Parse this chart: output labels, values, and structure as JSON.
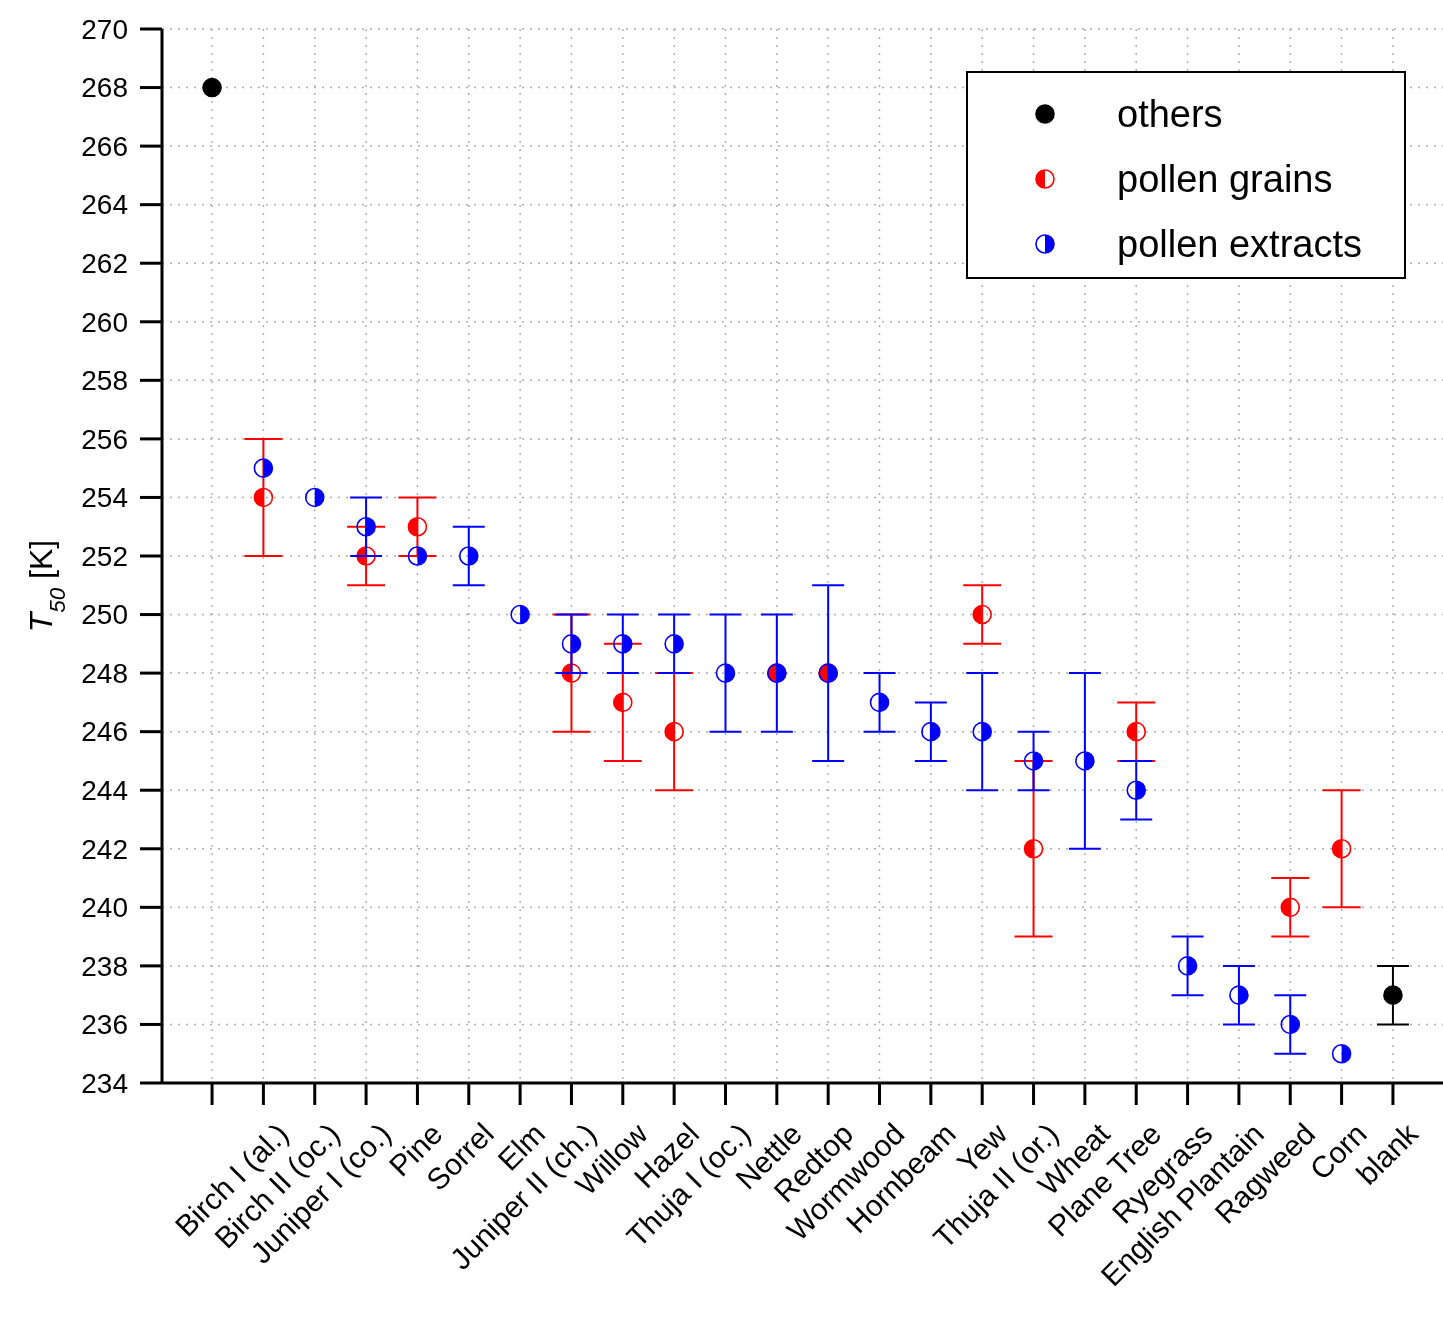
{
  "chart_data": {
    "type": "scatter",
    "ylabel": "T$_{50}$ [K]",
    "categories": [
      null,
      "Birch I (al.)",
      "Birch II (oc.)",
      "Juniper I (co.)",
      "Pine",
      "Sorrel",
      "Elm",
      "Juniper II (ch.)",
      "Willow",
      "Hazel",
      "Thuja I (oc.)",
      "Nettle",
      "Redtop",
      "Wormwood",
      "Hornbeam",
      "Yew",
      "Thuja II (or.)",
      "Wheat",
      "Plane Tree",
      "Ryegrass",
      "English Plantain",
      "Ragweed",
      "Corn",
      "blank"
    ],
    "series": [
      {
        "name": "others",
        "color": "#000000",
        "values": [
          268,
          null,
          null,
          null,
          null,
          null,
          null,
          null,
          null,
          null,
          null,
          null,
          null,
          null,
          null,
          null,
          null,
          null,
          null,
          null,
          null,
          null,
          null,
          237
        ],
        "errors": [
          null,
          null,
          null,
          null,
          null,
          null,
          null,
          null,
          null,
          null,
          null,
          null,
          null,
          null,
          null,
          null,
          null,
          null,
          null,
          null,
          null,
          null,
          null,
          1
        ]
      },
      {
        "name": "pollen grains",
        "color": "#ff0000",
        "values": [
          null,
          254,
          null,
          252,
          253,
          null,
          null,
          248,
          247,
          246,
          null,
          248,
          248,
          null,
          null,
          250,
          242,
          null,
          246,
          null,
          null,
          240,
          242,
          null
        ],
        "errors": [
          null,
          2,
          null,
          1,
          1,
          null,
          null,
          2,
          2,
          2,
          null,
          null,
          null,
          null,
          null,
          1,
          3,
          null,
          1,
          null,
          null,
          1,
          2,
          null
        ]
      },
      {
        "name": "pollen extracts",
        "color": "#0000ff",
        "values": [
          null,
          255,
          254,
          253,
          252,
          252,
          250,
          249,
          249,
          249,
          248,
          248,
          248,
          247,
          246,
          246,
          245,
          245,
          244,
          238,
          237,
          236,
          235,
          null
        ],
        "errors": [
          null,
          null,
          null,
          1,
          null,
          1,
          null,
          1,
          1,
          1,
          2,
          2,
          3,
          1,
          1,
          2,
          1,
          3,
          1,
          1,
          1,
          1,
          null,
          null
        ]
      }
    ],
    "ylim": [
      234,
      270
    ],
    "yticks": [
      234,
      236,
      238,
      240,
      242,
      244,
      246,
      248,
      250,
      252,
      254,
      256,
      258,
      260,
      262,
      264,
      266,
      268,
      270
    ],
    "grid": true,
    "legend": "top right",
    "marker": "circle"
  }
}
